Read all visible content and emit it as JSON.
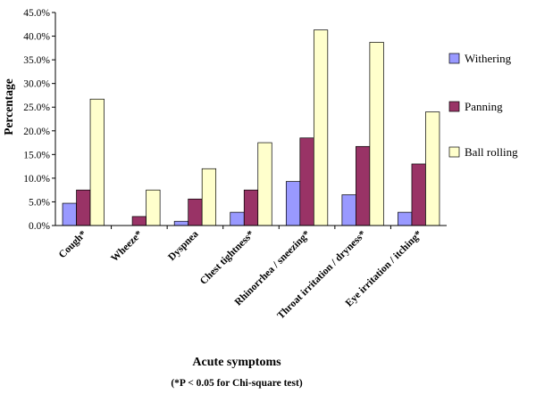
{
  "chart_data": {
    "type": "bar",
    "title": "",
    "xlabel": "Acute symptoms",
    "ylabel": "Percentage",
    "note": "(*P < 0.05 for Chi-square test)",
    "ylim": [
      0,
      45
    ],
    "yticks": [
      0,
      5,
      10,
      15,
      20,
      25,
      30,
      35,
      40,
      45
    ],
    "ytick_labels": [
      "0.0%",
      "5.0%",
      "10.0%",
      "15.0%",
      "20.0%",
      "25.0%",
      "30.0%",
      "35.0%",
      "40.0%",
      "45.0%"
    ],
    "grid": false,
    "legend_position": "right",
    "categories": [
      "Cough*",
      "Wheeze*",
      "Dyspnea",
      "Chest tightness*",
      "Rhinorrhea / sneezing*",
      "Throat irritation / dryness*",
      "Eye irritation / itching*"
    ],
    "series": [
      {
        "name": "Withering",
        "color": "#9999ff",
        "values": [
          4.7,
          0.0,
          0.9,
          2.8,
          9.3,
          6.5,
          2.8
        ]
      },
      {
        "name": "Panning",
        "color": "#993366",
        "values": [
          7.5,
          1.9,
          5.6,
          7.5,
          18.5,
          16.7,
          13.0
        ]
      },
      {
        "name": "Ball rolling",
        "color": "#ffffcc",
        "values": [
          26.7,
          7.5,
          12.0,
          17.5,
          41.3,
          38.7,
          24.0
        ]
      }
    ]
  }
}
